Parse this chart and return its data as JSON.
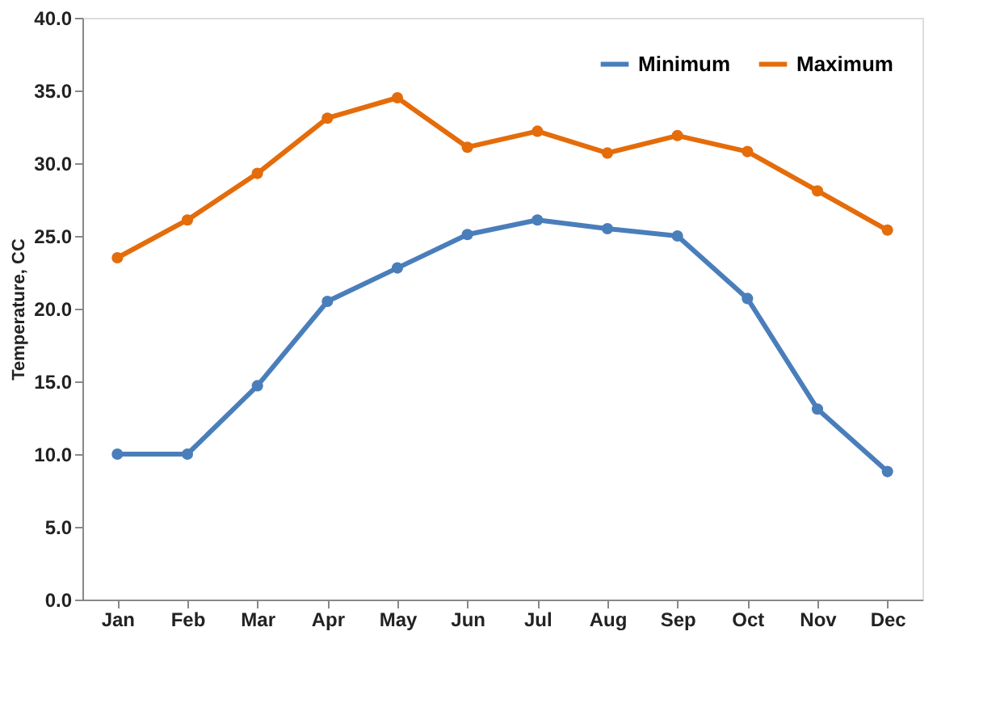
{
  "chart_data": {
    "type": "line",
    "ylabel": "Temperature, CC",
    "categories": [
      "Jan",
      "Feb",
      "Mar",
      "Apr",
      "May",
      "Jun",
      "Jul",
      "Aug",
      "Sep",
      "Oct",
      "Nov",
      "Dec"
    ],
    "series": [
      {
        "name": "Minimum",
        "color": "#4a7ebb",
        "values": [
          10.0,
          10.0,
          14.7,
          20.5,
          22.8,
          25.1,
          26.1,
          25.5,
          25.0,
          20.7,
          13.1,
          8.8
        ]
      },
      {
        "name": "Maximum",
        "color": "#e46c0a",
        "values": [
          23.5,
          26.1,
          29.3,
          33.1,
          34.5,
          31.1,
          32.2,
          30.7,
          31.9,
          30.8,
          28.1,
          25.4
        ]
      }
    ],
    "ylim": [
      0,
      40
    ],
    "yticks": [
      {
        "value": 0,
        "label": "0.0"
      },
      {
        "value": 5,
        "label": "5.0"
      },
      {
        "value": 10,
        "label": "10.0"
      },
      {
        "value": 15,
        "label": "15.0"
      },
      {
        "value": 20,
        "label": "20.0"
      },
      {
        "value": 25,
        "label": "25.0"
      },
      {
        "value": 30,
        "label": "30.0"
      },
      {
        "value": 35,
        "label": "35.0"
      },
      {
        "value": 40,
        "label": "40.0"
      }
    ],
    "grid": false,
    "legend": "top right",
    "marker": "circle",
    "line_style": "solid"
  }
}
